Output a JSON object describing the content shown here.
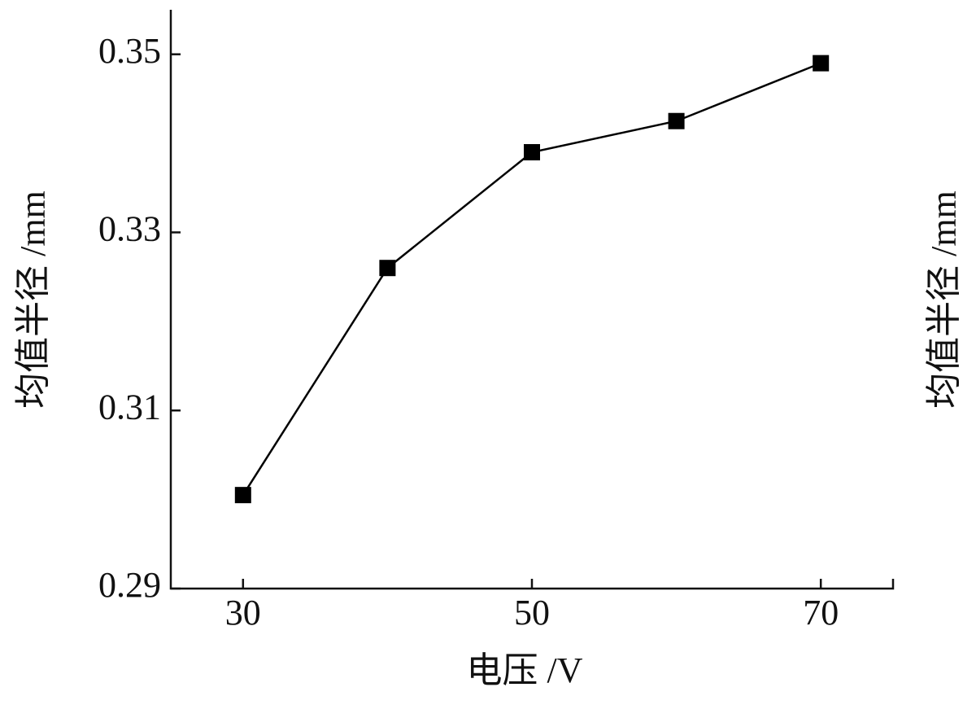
{
  "chart_data": {
    "type": "line",
    "x_label": "电压 /V",
    "y_label": "均值半径 /mm",
    "right_label": "均值半径 /mm",
    "x": [
      30,
      40,
      50,
      60,
      70
    ],
    "series": [
      {
        "color": "#000000",
        "values": [
          0.3005,
          0.326,
          0.339,
          0.3425,
          0.349
        ]
      }
    ],
    "xlim": [
      25,
      75
    ],
    "xticks": [
      30,
      50,
      70
    ],
    "ylim": [
      0.29,
      0.355
    ],
    "yticks": [
      0.29,
      0.31,
      0.33,
      0.35
    ],
    "marker": "square",
    "grid": false
  }
}
